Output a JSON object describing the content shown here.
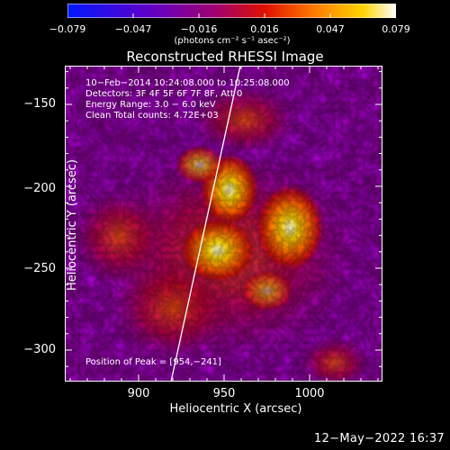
{
  "colorbar": {
    "ticks": [
      "−0.079",
      "−0.047",
      "−0.016",
      "0.016",
      "0.047",
      "0.079"
    ],
    "units": "(photons cm⁻² s⁻¹ asec⁻²)"
  },
  "title": "Reconstructed RHESSI Image",
  "annotations": [
    "10−Feb−2014 10:24:08.000 to 10:25:08.000",
    "Detectors: 3F 4F 5F 6F 7F 8F, Att 0",
    "Energy Range: 3.0 − 6.0 keV",
    "Clean     Total counts: 4.72E+03"
  ],
  "peak_label": "Position of Peak = [954,−241]",
  "x_axis": {
    "label": "Heliocentric X (arcsec)",
    "ticks": [
      "900",
      "950",
      "1000"
    ]
  },
  "y_axis": {
    "label": "Heliocentric Y (arcsec)",
    "ticks": [
      "−150",
      "−200",
      "−250",
      "−300"
    ]
  },
  "footer_date": "12−May−2022 16:37",
  "colors": {
    "colormap": [
      "#0018ff",
      "#5a00c8",
      "#9a0078",
      "#e01000",
      "#ff7a00",
      "#ffd400",
      "#ffffff"
    ],
    "background": "#000000",
    "limb": "#ffffff"
  }
}
